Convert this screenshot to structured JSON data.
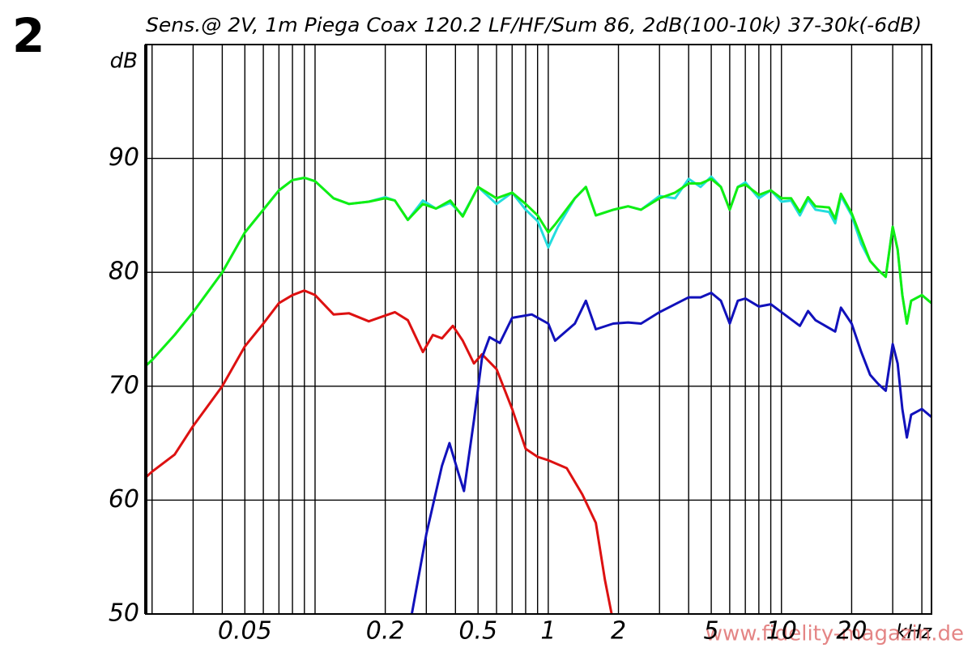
{
  "figure_number": "2",
  "chart_data": {
    "type": "line",
    "title": "Sens.@ 2V, 1m Piega Coax 120.2 LF/HF/Sum  86, 2dB(100-10k) 37-30k(-6dB)",
    "y_label": "dB",
    "x_label": "kHz",
    "log_x": true,
    "grid": true,
    "xlim": [
      0.0188,
      44
    ],
    "ylim": [
      50,
      100
    ],
    "yticks": [
      50,
      60,
      70,
      80,
      90
    ],
    "xticks": [
      0.05,
      0.2,
      0.5,
      1,
      2,
      5,
      10,
      20
    ],
    "xgrid": [
      0.02,
      0.03,
      0.04,
      0.05,
      0.06,
      0.07,
      0.08,
      0.09,
      0.1,
      0.2,
      0.3,
      0.4,
      0.5,
      0.6,
      0.7,
      0.8,
      0.9,
      1,
      2,
      3,
      4,
      5,
      6,
      7,
      8,
      9,
      10,
      20,
      30,
      40
    ],
    "ygrid": [
      60,
      70,
      80,
      90
    ],
    "series": [
      {
        "color": "#dd1111",
        "x": [
          0.0188,
          0.02,
          0.025,
          0.03,
          0.04,
          0.05,
          0.06,
          0.07,
          0.08,
          0.09,
          0.1,
          0.12,
          0.14,
          0.17,
          0.2,
          0.22,
          0.25,
          0.29,
          0.32,
          0.35,
          0.39,
          0.43,
          0.48,
          0.52,
          0.6,
          0.7,
          0.8,
          0.9,
          1.0,
          1.2,
          1.4,
          1.6,
          1.75,
          1.87
        ],
        "values": [
          62,
          62.5,
          64,
          66.5,
          70,
          73.5,
          75.5,
          77.3,
          78,
          78.4,
          78,
          76.3,
          76.4,
          75.7,
          76.2,
          76.5,
          75.8,
          73,
          74.5,
          74.2,
          75.3,
          74,
          72,
          72.8,
          71.5,
          68,
          64.5,
          63.8,
          63.5,
          62.8,
          60.5,
          58,
          53,
          50
        ]
      },
      {
        "color": "#1111bb",
        "x": [
          0.26,
          0.3,
          0.35,
          0.377,
          0.41,
          0.435,
          0.48,
          0.52,
          0.56,
          0.62,
          0.7,
          0.85,
          1.0,
          1.07,
          1.3,
          1.45,
          1.6,
          1.9,
          2.2,
          2.5,
          3,
          3.5,
          4,
          4.5,
          5,
          5.5,
          6,
          6.5,
          7,
          8,
          9,
          10,
          12,
          13,
          14,
          17,
          18,
          20,
          22,
          24,
          26,
          28,
          30,
          31.5,
          33,
          34.5,
          36,
          40,
          44
        ],
        "values": [
          50,
          57,
          63,
          65,
          62.5,
          60.8,
          67,
          72.5,
          74.3,
          73.8,
          76,
          76.3,
          75.5,
          74,
          75.5,
          77.5,
          75,
          75.5,
          75.6,
          75.5,
          76.5,
          77.2,
          77.8,
          77.8,
          78.2,
          77.5,
          75.5,
          77.5,
          77.7,
          77,
          77.2,
          76.5,
          75.3,
          76.6,
          75.8,
          74.8,
          76.9,
          75.5,
          73,
          71,
          70.2,
          69.6,
          73.7,
          72,
          68,
          65.5,
          67.5,
          68,
          67.3
        ]
      },
      {
        "color": "#22dddd",
        "x": [
          0.0188,
          0.02,
          0.025,
          0.03,
          0.04,
          0.05,
          0.06,
          0.07,
          0.08,
          0.09,
          0.1,
          0.12,
          0.14,
          0.17,
          0.2,
          0.22,
          0.25,
          0.29,
          0.33,
          0.38,
          0.43,
          0.5,
          0.6,
          0.7,
          0.8,
          0.9,
          1.0,
          1.1,
          1.3,
          1.45,
          1.6,
          1.9,
          2.2,
          2.5,
          3,
          3.5,
          4,
          4.5,
          5,
          5.5,
          6,
          6.5,
          7,
          8,
          9,
          10,
          11,
          12,
          13,
          14,
          16,
          17,
          18,
          20,
          22,
          24,
          26,
          28,
          30,
          31.5,
          33,
          34.5,
          36,
          40,
          44
        ],
        "values": [
          71.8,
          72.3,
          74.5,
          76.5,
          80,
          83.5,
          85.5,
          87.2,
          88.1,
          88.3,
          88,
          86.5,
          86,
          86.2,
          86.6,
          86.3,
          84.6,
          86.3,
          85.6,
          86.1,
          85,
          87.5,
          86,
          87,
          85.5,
          84.5,
          82.2,
          84,
          86.5,
          87.5,
          85,
          85.5,
          85.8,
          85.5,
          86.7,
          86.5,
          88.2,
          87.5,
          88.4,
          87.5,
          85.5,
          87.5,
          87.9,
          86.5,
          87.2,
          86.2,
          86.3,
          85,
          86.4,
          85.5,
          85.3,
          84.3,
          86.7,
          85,
          82.5,
          81,
          80.2,
          79.6,
          84,
          82,
          78,
          75.5,
          77.5,
          78,
          77.3
        ]
      },
      {
        "color": "#11ee11",
        "x": [
          0.0188,
          0.02,
          0.025,
          0.03,
          0.04,
          0.05,
          0.06,
          0.07,
          0.08,
          0.09,
          0.1,
          0.12,
          0.14,
          0.17,
          0.2,
          0.22,
          0.25,
          0.29,
          0.33,
          0.38,
          0.43,
          0.5,
          0.6,
          0.7,
          0.8,
          0.9,
          1.0,
          1.07,
          1.3,
          1.45,
          1.6,
          1.9,
          2.2,
          2.5,
          3,
          3.5,
          4,
          4.5,
          5,
          5.5,
          6,
          6.5,
          7,
          8,
          9,
          10,
          11,
          12,
          13,
          14,
          16,
          17,
          18,
          20,
          22,
          24,
          26,
          28,
          30,
          31.5,
          33,
          34.5,
          36,
          40,
          44
        ],
        "values": [
          71.8,
          72.3,
          74.5,
          76.5,
          80,
          83.5,
          85.5,
          87.2,
          88.1,
          88.3,
          88,
          86.5,
          86,
          86.2,
          86.5,
          86.3,
          84.6,
          86,
          85.6,
          86.3,
          84.9,
          87.5,
          86.5,
          87,
          86,
          85,
          83.5,
          84.2,
          86.5,
          87.5,
          85,
          85.5,
          85.8,
          85.5,
          86.5,
          87,
          87.8,
          87.8,
          88.2,
          87.5,
          85.5,
          87.5,
          87.7,
          86.8,
          87.2,
          86.5,
          86.5,
          85.3,
          86.6,
          85.8,
          85.7,
          84.7,
          86.9,
          85.2,
          83,
          81,
          80.2,
          79.6,
          84,
          82,
          78,
          75.5,
          77.5,
          78,
          77.3
        ]
      }
    ],
    "watermark": "www.fidelity-magazin.de"
  }
}
